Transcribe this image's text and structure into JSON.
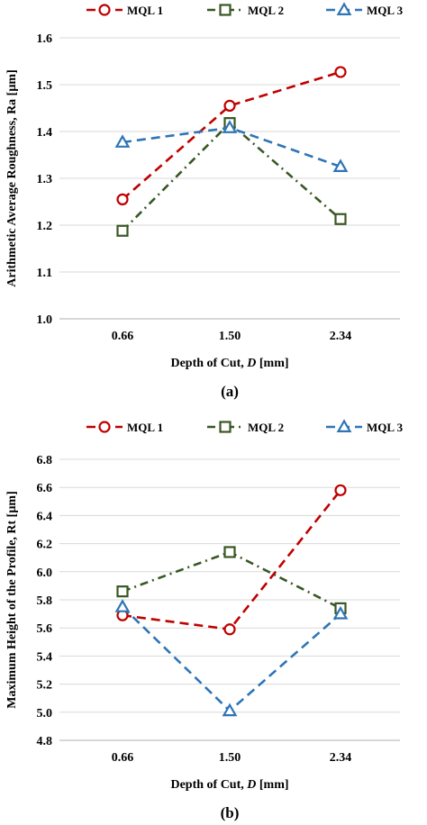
{
  "colors": {
    "MQL 1": "#c00000",
    "MQL 2": "#385723",
    "MQL 3": "#2e75b6",
    "grid": "#d9d9d9",
    "axis": "#bfbfbf"
  },
  "chart_data": [
    {
      "type": "line",
      "caption": "(a)",
      "categories": [
        "0.66",
        "1.50",
        "2.34"
      ],
      "xlabel": "Depth of Cut, D [mm]",
      "xlabel_prefix": "Depth of Cut,",
      "xlabel_var": "D",
      "xlabel_suffix": "[mm]",
      "ylabel": "Arithmetic Average Roughness, Ra [µm]",
      "ylim": [
        1.0,
        1.6
      ],
      "yticks": [
        "1.0",
        "1.1",
        "1.2",
        "1.3",
        "1.4",
        "1.5",
        "1.6"
      ],
      "grid": true,
      "legend_position": "top",
      "series": [
        {
          "name": "MQL 1",
          "marker": "circle",
          "dash": "dash",
          "values": [
            1.255,
            1.455,
            1.527
          ]
        },
        {
          "name": "MQL 2",
          "marker": "square",
          "dash": "dashdot",
          "values": [
            1.188,
            1.418,
            1.213
          ]
        },
        {
          "name": "MQL 3",
          "marker": "triangle",
          "dash": "dash",
          "values": [
            1.377,
            1.408,
            1.325
          ]
        }
      ]
    },
    {
      "type": "line",
      "caption": "(b)",
      "categories": [
        "0.66",
        "1.50",
        "2.34"
      ],
      "xlabel": "Depth of Cut, D [mm]",
      "xlabel_prefix": "Depth of Cut,",
      "xlabel_var": "D",
      "xlabel_suffix": "[mm]",
      "ylabel": "Maximum Height of the Profile, Rt [µm]",
      "ylim": [
        4.8,
        6.8
      ],
      "yticks": [
        "4.8",
        "5.0",
        "5.2",
        "5.4",
        "5.6",
        "5.8",
        "6.0",
        "6.2",
        "6.4",
        "6.6",
        "6.8"
      ],
      "grid": true,
      "legend_position": "top",
      "series": [
        {
          "name": "MQL 1",
          "marker": "circle",
          "dash": "dash",
          "values": [
            5.69,
            5.59,
            6.58
          ]
        },
        {
          "name": "MQL 2",
          "marker": "square",
          "dash": "dashdot",
          "values": [
            5.86,
            6.14,
            5.74
          ]
        },
        {
          "name": "MQL 3",
          "marker": "triangle",
          "dash": "dash",
          "values": [
            5.75,
            5.01,
            5.7
          ]
        }
      ]
    }
  ]
}
